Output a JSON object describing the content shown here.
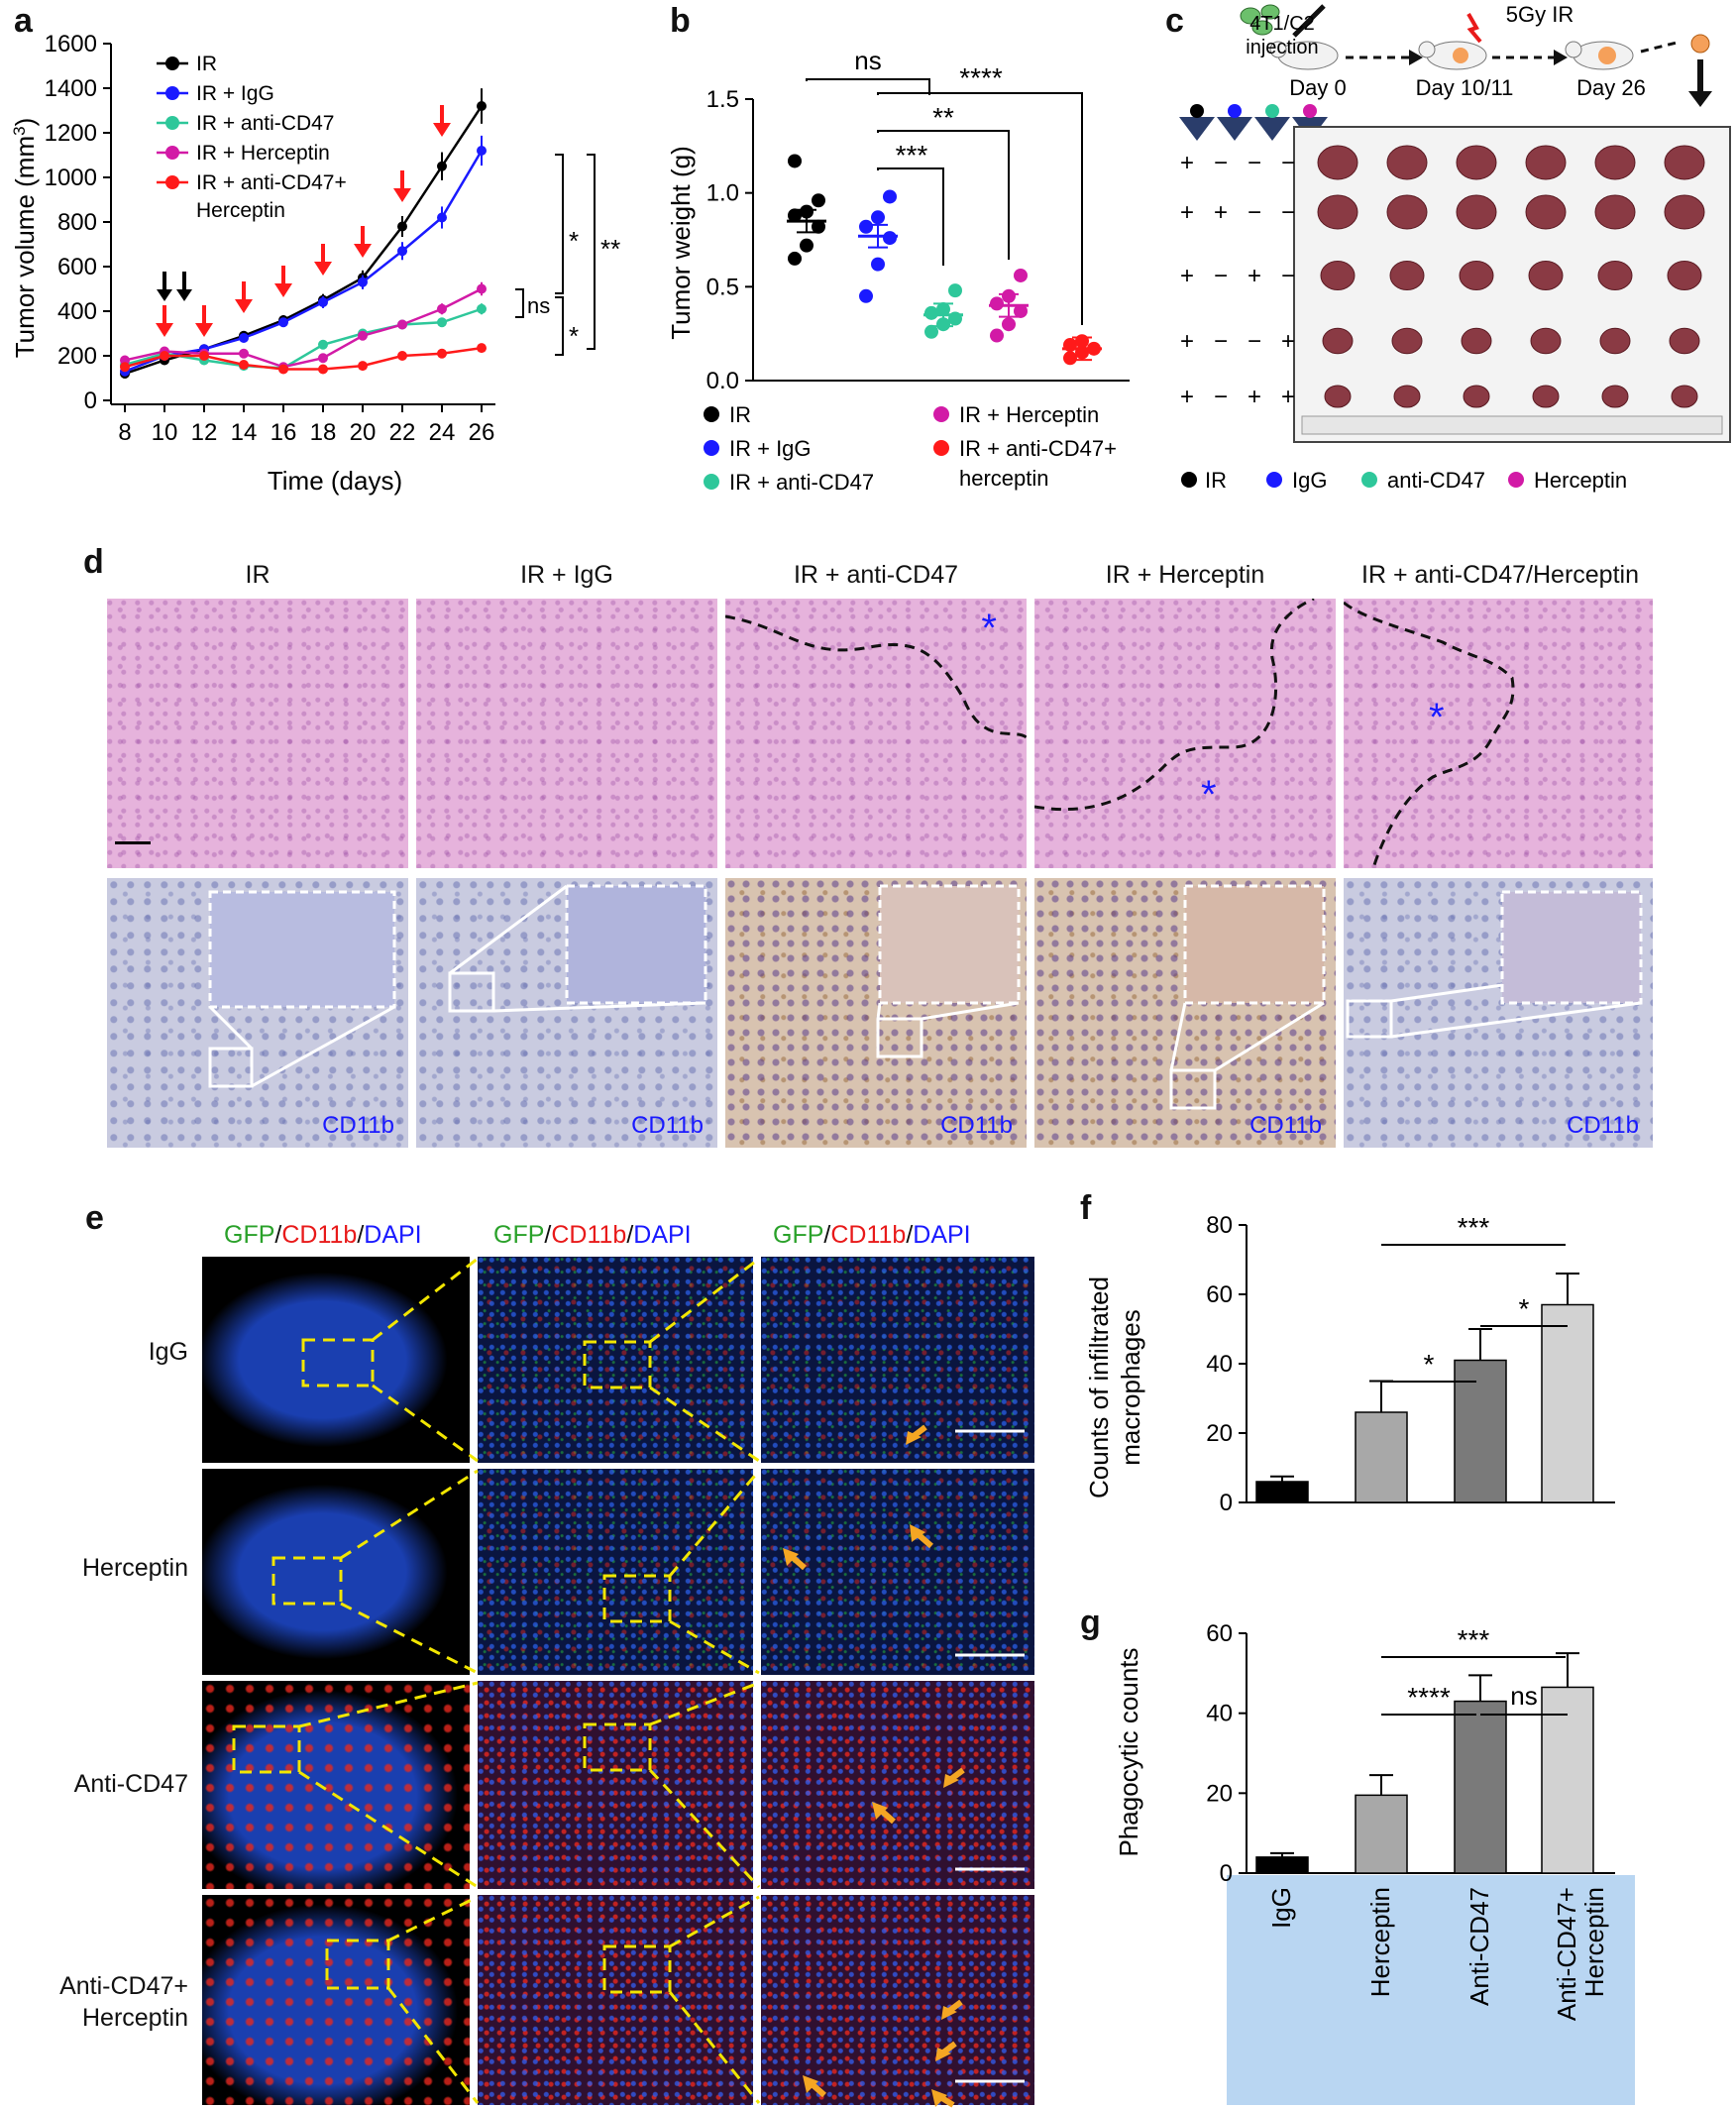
{
  "panels": {
    "a": "a",
    "b": "b",
    "c": "c",
    "d": "d",
    "e": "e",
    "f": "f",
    "g": "g"
  },
  "colors": {
    "IR": "#000000",
    "IgG": "#1a1aff",
    "antiCD47": "#2ec79a",
    "Herceptin": "#d21aa6",
    "combo": "#ff1a1a",
    "arrow_red": "#ff1a1a",
    "arrow_orange": "#f5a623",
    "dashed_yellow": "#f2e600"
  },
  "legend_a": [
    "IR",
    "IR + IgG",
    "IR + anti-CD47",
    "IR + Herceptin",
    "IR + anti-CD47+",
    "Herceptin"
  ],
  "legend_b": [
    "IR",
    "IR + IgG",
    "IR + anti-CD47",
    "IR + Herceptin",
    "IR + anti-CD47+",
    "herceptin"
  ],
  "sig_a": [
    "*",
    "**",
    "ns",
    "*"
  ],
  "sig_b": [
    "ns",
    "****",
    "**",
    "***"
  ],
  "chart_data": [
    {
      "type": "line",
      "title": "",
      "xlabel": "Time (days)",
      "ylabel": "Tumor volume (mm3)",
      "xlim": [
        8,
        26
      ],
      "ylim": [
        0,
        1600
      ],
      "x": [
        8,
        10,
        12,
        14,
        16,
        18,
        20,
        22,
        24,
        26
      ],
      "xticks": [
        "8",
        "10",
        "12",
        "14",
        "16",
        "18",
        "20",
        "22",
        "24",
        "26"
      ],
      "yticks": [
        "0",
        "200",
        "400",
        "600",
        "800",
        "1000",
        "1200",
        "1400",
        "1600"
      ],
      "series": [
        {
          "name": "IR",
          "color": "#000000",
          "values": [
            120,
            180,
            230,
            290,
            360,
            450,
            550,
            780,
            1050,
            1320
          ]
        },
        {
          "name": "IR + IgG",
          "color": "#1a1aff",
          "values": [
            130,
            200,
            230,
            280,
            350,
            440,
            530,
            670,
            820,
            1120
          ]
        },
        {
          "name": "IR + anti-CD47",
          "color": "#2ec79a",
          "values": [
            160,
            210,
            180,
            155,
            145,
            250,
            300,
            340,
            350,
            410
          ]
        },
        {
          "name": "IR + Herceptin",
          "color": "#d21aa6",
          "values": [
            180,
            220,
            210,
            210,
            150,
            190,
            290,
            340,
            410,
            500
          ]
        },
        {
          "name": "IR + anti-CD47+ Herceptin",
          "color": "#ff1a1a",
          "values": [
            150,
            200,
            200,
            160,
            140,
            140,
            155,
            200,
            210,
            235
          ]
        }
      ]
    },
    {
      "type": "scatter",
      "title": "",
      "xlabel": "",
      "ylabel": "Tumor weight (g)",
      "ylim": [
        0,
        1.5
      ],
      "yticks": [
        "0.0",
        "0.5",
        "1.0",
        "1.5"
      ],
      "series": [
        {
          "name": "IR",
          "color": "#000000",
          "mean": 0.85,
          "points": [
            0.65,
            0.72,
            0.82,
            0.88,
            0.9,
            0.96,
            1.17
          ]
        },
        {
          "name": "IR + IgG",
          "color": "#1a1aff",
          "mean": 0.77,
          "points": [
            0.45,
            0.62,
            0.76,
            0.82,
            0.87,
            0.98
          ]
        },
        {
          "name": "IR + anti-CD47",
          "color": "#2ec79a",
          "mean": 0.35,
          "points": [
            0.26,
            0.3,
            0.33,
            0.36,
            0.38,
            0.48
          ]
        },
        {
          "name": "IR + Herceptin",
          "color": "#d21aa6",
          "mean": 0.4,
          "points": [
            0.24,
            0.3,
            0.37,
            0.41,
            0.45,
            0.56
          ]
        },
        {
          "name": "IR + anti-CD47+ herceptin",
          "color": "#ff1a1a",
          "mean": 0.17,
          "points": [
            0.12,
            0.15,
            0.17,
            0.19,
            0.21
          ]
        }
      ]
    },
    {
      "type": "bar",
      "title": "",
      "xlabel": "",
      "ylabel": "Counts of infiltrated macrophages",
      "ylim": [
        0,
        80
      ],
      "yticks": [
        "0",
        "20",
        "40",
        "60",
        "80"
      ],
      "categories": [
        "IgG",
        "Herceptin",
        "Anti-CD47",
        "Anti-CD47+ Herceptin"
      ],
      "values": [
        6,
        26,
        41,
        57
      ],
      "errors": [
        1.5,
        9,
        9,
        9
      ],
      "colors": [
        "#000000",
        "#a8a8a8",
        "#7a7a7a",
        "#d2d2d2"
      ],
      "sig": [
        "***",
        "*",
        "*"
      ]
    },
    {
      "type": "bar",
      "title": "",
      "xlabel": "",
      "ylabel": "Phagocytic counts",
      "ylim": [
        0,
        60
      ],
      "yticks": [
        "0",
        "20",
        "40",
        "60"
      ],
      "categories": [
        "IgG",
        "Herceptin",
        "Anti-CD47",
        "Anti-CD47+ Herceptin"
      ],
      "values": [
        4,
        19.5,
        43,
        46.5
      ],
      "errors": [
        1,
        5,
        6.5,
        8.5
      ],
      "colors": [
        "#000000",
        "#a8a8a8",
        "#7a7a7a",
        "#d2d2d2"
      ],
      "sig": [
        "***",
        "****",
        "ns"
      ],
      "xlabels": [
        "IgG",
        "Herceptin",
        "Anti-CD47",
        "Anti-CD47+",
        "Herceptin"
      ]
    }
  ],
  "panel_c": {
    "top_labels": [
      "4T1/C2",
      "injection",
      "5Gy IR",
      "Day 0",
      "Day 10/11",
      "Day 26"
    ],
    "sign_rows": [
      [
        "+",
        "−",
        "−",
        "−"
      ],
      [
        "+",
        "+",
        "−",
        "−"
      ],
      [
        "+",
        "−",
        "+",
        "−"
      ],
      [
        "+",
        "−",
        "−",
        "+"
      ],
      [
        "+",
        "−",
        "+",
        "+"
      ]
    ],
    "legend": [
      "IR",
      "IgG",
      "anti-CD47",
      "Herceptin"
    ]
  },
  "panel_d": {
    "headers": [
      "IR",
      "IR + IgG",
      "IR + anti-CD47",
      "IR + Herceptin",
      "IR + anti-CD47/Herceptin"
    ],
    "marker": "CD11b",
    "star": "*"
  },
  "panel_e": {
    "header": {
      "g": "GFP",
      "s1": "/",
      "r": "CD11b",
      "s2": "/",
      "b": "DAPI"
    },
    "rows": [
      "IgG",
      "Herceptin",
      "Anti-CD47",
      "Anti-CD47+",
      "Herceptin"
    ]
  }
}
